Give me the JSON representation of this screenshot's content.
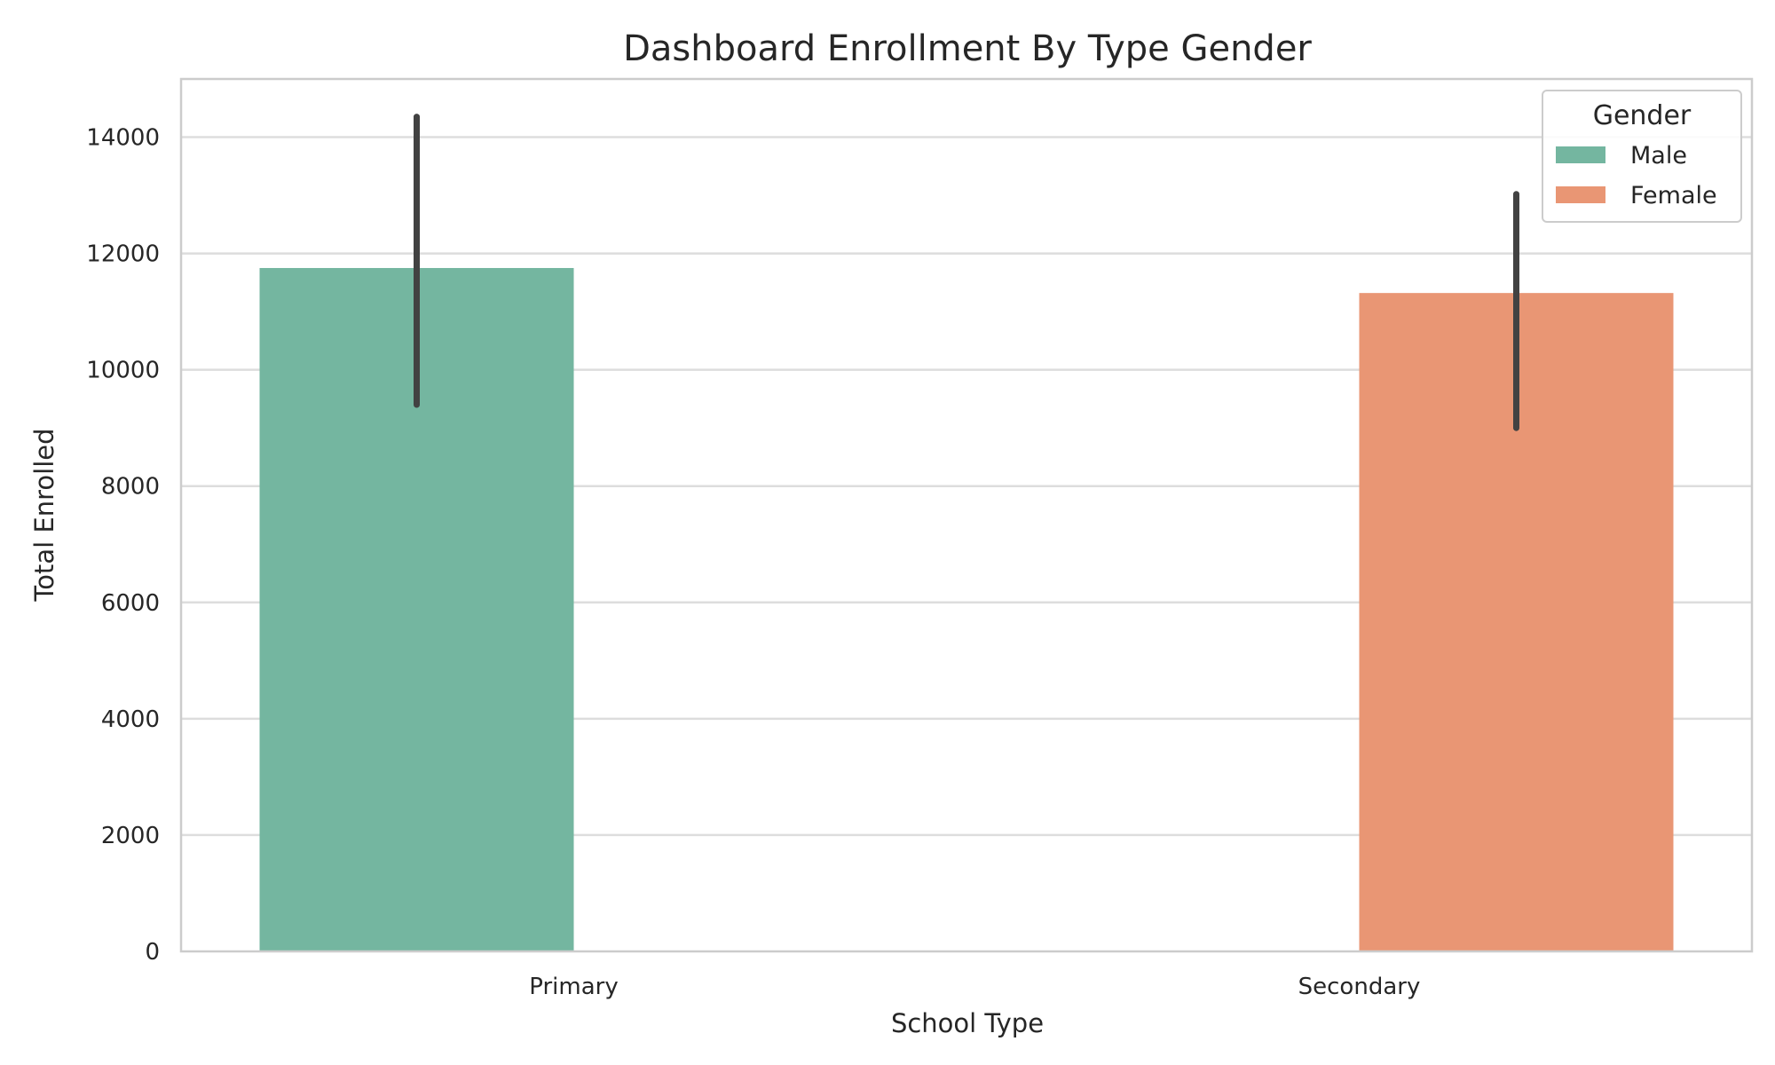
{
  "chart_data": {
    "type": "bar",
    "title": "Dashboard Enrollment By Type Gender",
    "xlabel": "School Type",
    "ylabel": "Total Enrolled",
    "categories": [
      "Primary",
      "Secondary"
    ],
    "ylim": [
      0,
      15000
    ],
    "yticks": [
      "0",
      "2000",
      "4000",
      "6000",
      "8000",
      "10000",
      "12000",
      "14000"
    ],
    "grid": true,
    "legend": {
      "title": "Gender",
      "placement": "top-right"
    },
    "series": [
      {
        "name": "Male",
        "color": "#74b6a0",
        "values": [
          11750,
          null
        ],
        "error": [
          [
            9400,
            14350
          ],
          null
        ]
      },
      {
        "name": "Female",
        "color": "#e99674",
        "values": [
          null,
          11320
        ],
        "error": [
          null,
          [
            9000,
            13020
          ]
        ]
      }
    ]
  }
}
